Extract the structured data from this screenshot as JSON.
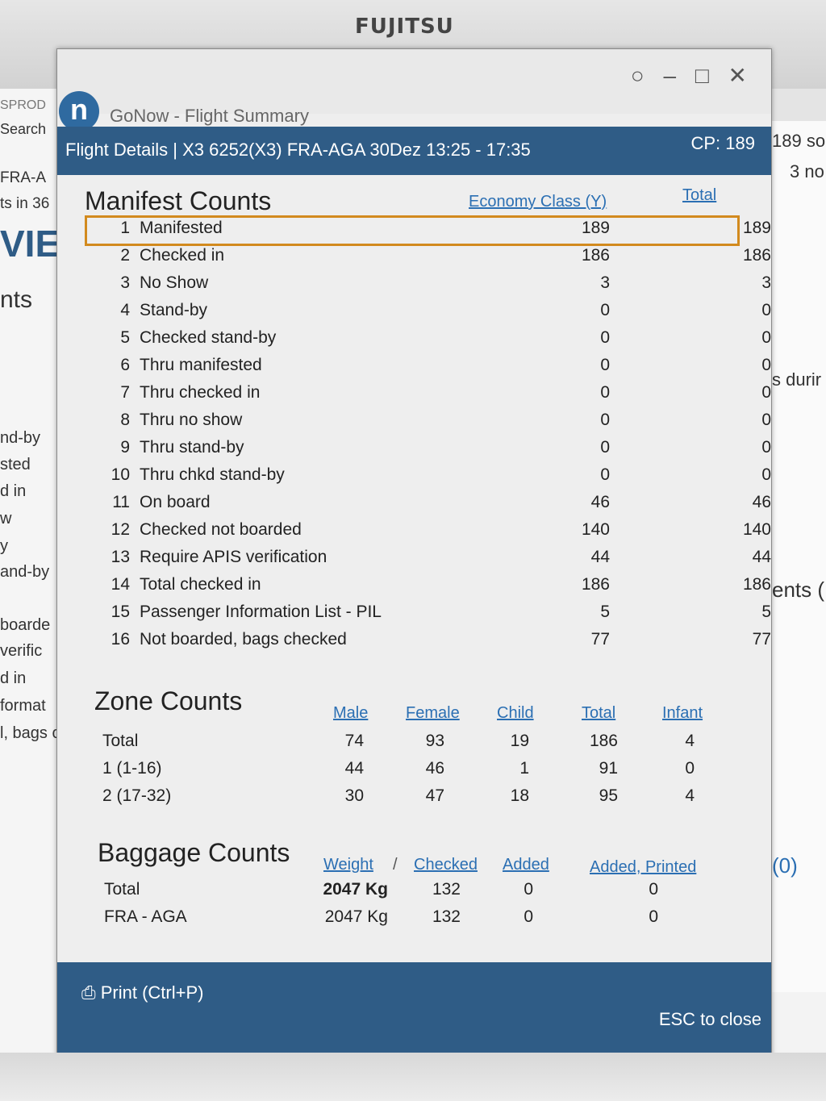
{
  "monitor": {
    "brand": "FUJITSU"
  },
  "background": {
    "left_texts": [
      "SPROD",
      "Search",
      "FRA-A",
      "ts in 36",
      "VIE",
      "nts",
      "nd-by",
      "sted",
      "d in",
      "w",
      "y",
      "and-by",
      "boarde",
      "verific",
      "d in",
      "format",
      "l, bags c"
    ],
    "right_texts": [
      "189 so",
      "3 no",
      "s durir",
      "ents (",
      "(0)"
    ]
  },
  "window": {
    "app_title": "GoNow - Flight Summary",
    "controls": "○ – □ ✕",
    "header": {
      "flight_details": "Flight Details | X3 6252(X3)  FRA-AGA  30Dez 13:25 - 17:35",
      "cp": "CP: 189"
    },
    "manifest": {
      "title": "Manifest Counts",
      "col_economy": "Economy Class (Y)",
      "col_total": "Total",
      "rows": [
        {
          "n": "1",
          "label": "Manifested",
          "y": "189",
          "t": "189"
        },
        {
          "n": "2",
          "label": "Checked in",
          "y": "186",
          "t": "186"
        },
        {
          "n": "3",
          "label": "No Show",
          "y": "3",
          "t": "3"
        },
        {
          "n": "4",
          "label": "Stand-by",
          "y": "0",
          "t": "0"
        },
        {
          "n": "5",
          "label": "Checked stand-by",
          "y": "0",
          "t": "0"
        },
        {
          "n": "6",
          "label": "Thru manifested",
          "y": "0",
          "t": "0"
        },
        {
          "n": "7",
          "label": "Thru checked in",
          "y": "0",
          "t": "0"
        },
        {
          "n": "8",
          "label": "Thru no show",
          "y": "0",
          "t": "0"
        },
        {
          "n": "9",
          "label": "Thru stand-by",
          "y": "0",
          "t": "0"
        },
        {
          "n": "10",
          "label": "Thru chkd stand-by",
          "y": "0",
          "t": "0"
        },
        {
          "n": "11",
          "label": "On board",
          "y": "46",
          "t": "46"
        },
        {
          "n": "12",
          "label": "Checked not boarded",
          "y": "140",
          "t": "140"
        },
        {
          "n": "13",
          "label": "Require APIS verification",
          "y": "44",
          "t": "44"
        },
        {
          "n": "14",
          "label": "Total checked in",
          "y": "186",
          "t": "186"
        },
        {
          "n": "15",
          "label": "Passenger Information List - PIL",
          "y": "5",
          "t": "5"
        },
        {
          "n": "16",
          "label": "Not boarded, bags checked",
          "y": "77",
          "t": "77"
        }
      ]
    },
    "zones": {
      "title": "Zone Counts",
      "cols": [
        "Male",
        "Female",
        "Child",
        "Total",
        "Infant"
      ],
      "rows": [
        {
          "label": "Total",
          "vals": [
            "74",
            "93",
            "19",
            "186",
            "4"
          ]
        },
        {
          "label": "1 (1-16)",
          "vals": [
            "44",
            "46",
            "1",
            "91",
            "0"
          ]
        },
        {
          "label": "2 (17-32)",
          "vals": [
            "30",
            "47",
            "18",
            "95",
            "4"
          ]
        }
      ]
    },
    "baggage": {
      "title": "Baggage Counts",
      "col_weight": "Weight",
      "col_sep": "/",
      "col_checked": "Checked",
      "col_added": "Added",
      "col_added_printed": "Added, Printed",
      "rows": [
        {
          "label": "Total",
          "weight": "2047 Kg",
          "checked": "132",
          "added": "0",
          "printed": "0"
        },
        {
          "label": "FRA - AGA",
          "weight": "2047 Kg",
          "checked": "132",
          "added": "0",
          "printed": "0"
        }
      ]
    },
    "footer": {
      "print": "Print (Ctrl+P)",
      "esc": "ESC to close"
    }
  }
}
